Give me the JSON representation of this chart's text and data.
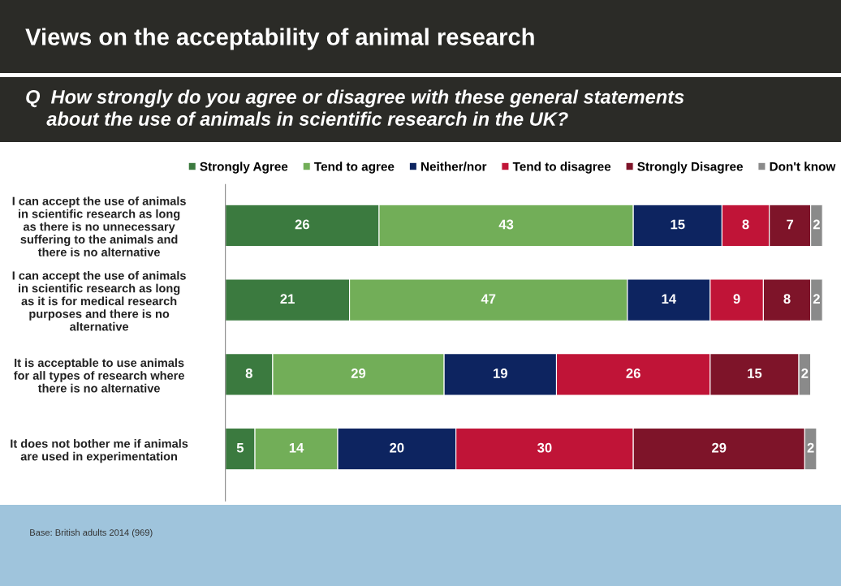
{
  "chart_data": {
    "type": "bar",
    "orientation": "horizontal",
    "stacked": true,
    "data_labels": true,
    "legend": "top",
    "grid": false,
    "title": "Views on the acceptability of animal research",
    "subtitle": "Q  How strongly do you agree or disagree with these general statements\n    about the use of animals in scientific research in the UK?",
    "categories": [
      "I can accept the use of animals\nin scientific research as long\nas there is no unnecessary\nsuffering to the animals and\nthere is no alternative",
      "I can accept the use of animals\nin scientific research as long\nas it is for medical research\npurposes and there is no\nalternative",
      "It is acceptable to use animals\nfor all types of research where\nthere is no alternative",
      "It does not bother me if animals\nare used in experimentation"
    ],
    "series": [
      {
        "name": "Strongly Agree",
        "color": "#3b7a3f",
        "values": [
          26,
          21,
          8,
          5
        ]
      },
      {
        "name": "Tend to agree",
        "color": "#72ae58",
        "values": [
          43,
          47,
          29,
          14
        ]
      },
      {
        "name": "Neither/nor",
        "color": "#0d2460",
        "values": [
          15,
          14,
          19,
          20
        ]
      },
      {
        "name": "Tend to disagree",
        "color": "#c01437",
        "values": [
          8,
          9,
          26,
          30
        ]
      },
      {
        "name": "Strongly Disagree",
        "color": "#7e1429",
        "values": [
          7,
          8,
          15,
          29
        ]
      },
      {
        "name": "Don't know",
        "color": "#8a8a8a",
        "values": [
          2,
          2,
          2,
          2
        ]
      }
    ],
    "annotations": [
      "Base: British adults 2014 (969)"
    ]
  }
}
